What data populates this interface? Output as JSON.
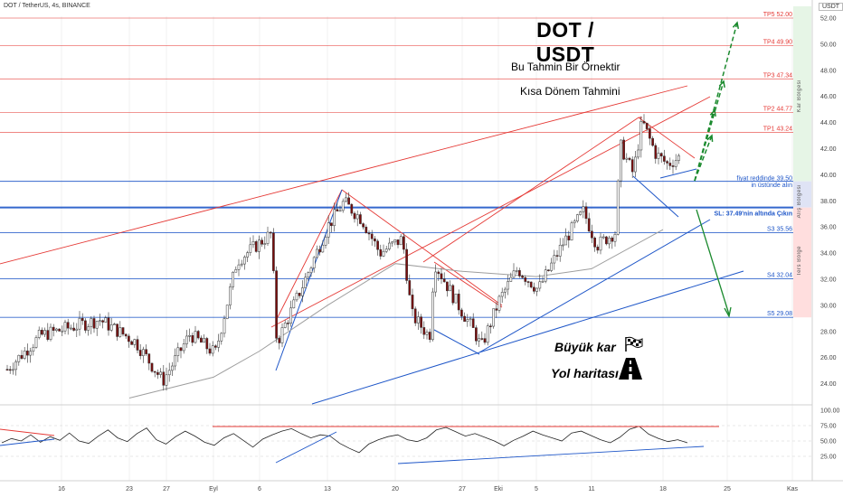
{
  "header": {
    "symbol_line": "DOT / TetherUS, 4s, BINANCE",
    "currency_label": "USDT"
  },
  "annotations": {
    "title": "DOT / USDT",
    "subtitle_1": "Bu Tahmin Bir Örnektir",
    "subtitle_2": "Kısa Dönem Tahmini",
    "big_profit": "Büyük kar",
    "roadmap": "Yol haritası",
    "flag_icon": "checkered-flag-icon",
    "road_icon": "road-icon"
  },
  "zones": {
    "profit_zone": "Kar Bölgesi",
    "buy_zone": "Alış Bölgesi",
    "reverse_zone": "Ters Bölge"
  },
  "colors": {
    "up_candle": "#ffffff",
    "down_candle": "#7a0c0c",
    "target_lines": "#e53935",
    "support_lines": "#1e56c8",
    "projection_up": "#1b8a2e",
    "ma_line": "#9e9e9e",
    "buy_zone_fill": "#dfe3f5",
    "reverse_zone_fill": "#ffdede",
    "profit_zone_fill": "#e6f5e6"
  },
  "chart_data": [
    {
      "type": "candlestick",
      "title": "DOT / TetherUS, 4s, BINANCE",
      "y_unit": "USDT",
      "ylim": [
        22.0,
        54.0
      ],
      "y_ticks": [
        24.0,
        26.0,
        28.0,
        30.0,
        32.0,
        34.0,
        36.0,
        38.0,
        40.0,
        42.0,
        44.0,
        46.0,
        48.0,
        50.0,
        52.0
      ],
      "x_ticks": [
        "16",
        "23",
        "27",
        "Eyl",
        "6",
        "13",
        "20",
        "27",
        "Eki",
        "5",
        "11",
        "18",
        "25",
        "Kas"
      ],
      "price_path": [
        {
          "x": "16",
          "price": 25.1
        },
        {
          "x": "20",
          "price": 27.7
        },
        {
          "x": "23",
          "price": 28.9
        },
        {
          "x": "25",
          "price": 27.2
        },
        {
          "x": "27",
          "price": 24.2
        },
        {
          "x": "29",
          "price": 27.8
        },
        {
          "x": "Eyl",
          "price": 26.3
        },
        {
          "x": "3",
          "price": 33.4
        },
        {
          "x": "5",
          "price": 35.5
        },
        {
          "x": "6",
          "price": 27.1
        },
        {
          "x": "10",
          "price": 31.6
        },
        {
          "x": "12",
          "price": 36.0
        },
        {
          "x": "13",
          "price": 37.9
        },
        {
          "x": "15",
          "price": 36.6
        },
        {
          "x": "17",
          "price": 34.0
        },
        {
          "x": "18",
          "price": 35.1
        },
        {
          "x": "20",
          "price": 29.3
        },
        {
          "x": "21",
          "price": 27.6
        },
        {
          "x": "23",
          "price": 33.3
        },
        {
          "x": "25",
          "price": 30.2
        },
        {
          "x": "27",
          "price": 27.9
        },
        {
          "x": "28",
          "price": 26.8
        },
        {
          "x": "Eki",
          "price": 30.4
        },
        {
          "x": "3",
          "price": 32.8
        },
        {
          "x": "5",
          "price": 31.2
        },
        {
          "x": "7",
          "price": 34.7
        },
        {
          "x": "9",
          "price": 37.2
        },
        {
          "x": "10",
          "price": 34.6
        },
        {
          "x": "11",
          "price": 35.6
        },
        {
          "x": "12",
          "price": 42.2
        },
        {
          "x": "14",
          "price": 40.1
        },
        {
          "x": "15",
          "price": 44.1
        },
        {
          "x": "17",
          "price": 41.6
        },
        {
          "x": "19",
          "price": 40.8
        },
        {
          "x": "20",
          "price": 41.4
        }
      ],
      "moving_average": [
        {
          "x": "23",
          "price": 22.9
        },
        {
          "x": "Eyl",
          "price": 24.5
        },
        {
          "x": "6",
          "price": 26.5
        },
        {
          "x": "13",
          "price": 30.0
        },
        {
          "x": "20",
          "price": 33.2
        },
        {
          "x": "27",
          "price": 32.6
        },
        {
          "x": "5",
          "price": 32.2
        },
        {
          "x": "11",
          "price": 32.8
        },
        {
          "x": "18",
          "price": 35.8
        }
      ],
      "levels": [
        {
          "name": "TP5",
          "value": 52.0,
          "label": "TP5 52.00",
          "kind": "target"
        },
        {
          "name": "TP4",
          "value": 49.9,
          "label": "TP4 49.90",
          "kind": "target"
        },
        {
          "name": "TP3",
          "value": 47.34,
          "label": "TP3 47.34",
          "kind": "target"
        },
        {
          "name": "TP2",
          "value": 44.77,
          "label": "TP2 44.77",
          "kind": "target"
        },
        {
          "name": "TP1",
          "value": 43.24,
          "label": "TP1 43.24",
          "kind": "target"
        },
        {
          "name": "entry",
          "value": 39.5,
          "label_1": "fiyat reddinde 39.50",
          "label_2": "in üstünde alın",
          "kind": "entry"
        },
        {
          "name": "SL",
          "value": 37.49,
          "label": "SL: 37.49'nin altında Çıkın",
          "kind": "stop"
        },
        {
          "name": "S3",
          "value": 35.56,
          "label": "S3 35.56",
          "kind": "support"
        },
        {
          "name": "S4",
          "value": 32.04,
          "label": "S4 32.04",
          "kind": "support"
        },
        {
          "name": "S5",
          "value": 29.08,
          "label": "S5 29.08",
          "kind": "support"
        }
      ],
      "price_axis_labels": [
        "52.00",
        "50.00",
        "48.00",
        "46.00",
        "44.00",
        "42.00",
        "40.00",
        "38.00",
        "36.00",
        "34.00",
        "32.00",
        "30.00",
        "28.00",
        "26.00",
        "24.00"
      ]
    },
    {
      "type": "line",
      "title": "",
      "ylim": [
        0.0,
        100.0
      ],
      "y_ticks": [
        25.0,
        50.0,
        75.0,
        100.0
      ],
      "y_tick_labels": [
        "25.00",
        "50.00",
        "75.00",
        "100.00"
      ],
      "series": [
        {
          "values": [
            47,
            54,
            50,
            60,
            48,
            57,
            51,
            63,
            50,
            46,
            58,
            68,
            55,
            49,
            62,
            71,
            52,
            45,
            57,
            66,
            58,
            48,
            43,
            55,
            62,
            51,
            40,
            53,
            60,
            66,
            70,
            62,
            55,
            60,
            58,
            46,
            38,
            31,
            45,
            52,
            57,
            60,
            52,
            49,
            55,
            68,
            72,
            65,
            58,
            62,
            56,
            50,
            42,
            51,
            58,
            66,
            60,
            55,
            50,
            63,
            66,
            59,
            52,
            47,
            56,
            69,
            74,
            61,
            54,
            49,
            52,
            47
          ]
        }
      ]
    }
  ]
}
